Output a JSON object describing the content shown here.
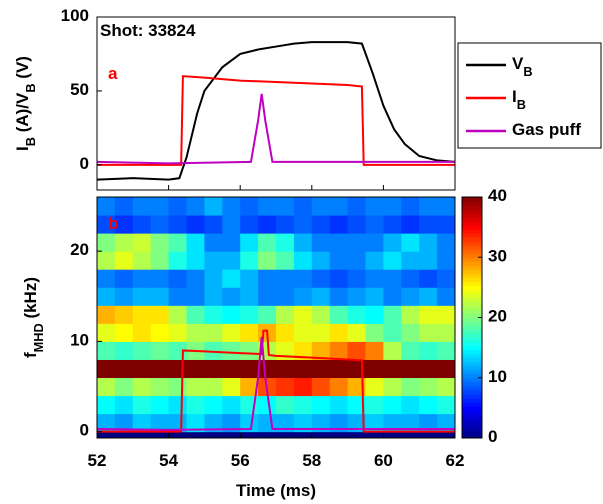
{
  "chart_data": [
    {
      "type": "line",
      "annotations": [
        "Shot:  33824",
        "a"
      ],
      "ylabel": "I_B (A)/V_B (V)",
      "xlim": [
        52,
        62
      ],
      "xticks": [
        52,
        54,
        56,
        58,
        60,
        62
      ],
      "ylim": [
        -17,
        100
      ],
      "yticks": [
        0,
        50,
        100
      ],
      "series": [
        {
          "name": "V_B",
          "color": "#000000",
          "x": [
            52,
            53,
            54,
            54.3,
            54.5,
            54.8,
            55,
            55.5,
            56,
            56.5,
            57,
            57.5,
            58,
            58.5,
            59,
            59.4,
            59.7,
            60,
            60.3,
            60.6,
            61,
            61.5,
            62
          ],
          "values": [
            -10,
            -9,
            -10,
            -9,
            5,
            35,
            50,
            66,
            75,
            78,
            80,
            82,
            83,
            83,
            83,
            82,
            62,
            40,
            24,
            14,
            6,
            3,
            2
          ]
        },
        {
          "name": "I_B",
          "color": "#ff0000",
          "x": [
            52,
            54.35,
            54.4,
            55,
            56,
            57,
            58,
            59,
            59.4,
            59.45,
            62
          ],
          "values": [
            0,
            0,
            60,
            59,
            57,
            56,
            55,
            54,
            53,
            0,
            0
          ]
        },
        {
          "name": "Gas puff",
          "color": "#c000c0",
          "x": [
            52,
            54,
            56.3,
            56.5,
            56.6,
            56.7,
            56.9,
            58,
            62
          ],
          "values": [
            2,
            1,
            2,
            30,
            48,
            30,
            2,
            2,
            2
          ]
        }
      ],
      "legend": "outside-right"
    },
    {
      "type": "heatmap",
      "annotations": [
        "b"
      ],
      "xlabel": "Time (ms)",
      "ylabel": "f_MHD (kHz)",
      "xlim": [
        52,
        62
      ],
      "xticks": [
        52,
        54,
        56,
        58,
        60,
        62
      ],
      "ylim": [
        -0.7,
        26
      ],
      "yticks": [
        0,
        10,
        20
      ],
      "xbins": [
        52,
        52.5,
        53,
        53.5,
        54,
        54.5,
        55,
        55.5,
        56,
        56.5,
        57,
        57.5,
        58,
        58.5,
        59,
        59.5,
        60,
        60.5,
        61,
        61.5,
        62
      ],
      "ybins": [
        0,
        2,
        4,
        6,
        8,
        10,
        12,
        14,
        16,
        18,
        20,
        22,
        24,
        26
      ],
      "z": [
        [
          12,
          11,
          13,
          12,
          12,
          14,
          12,
          11,
          13,
          12,
          12,
          13,
          12,
          11,
          12,
          13,
          12,
          12,
          11,
          12
        ],
        [
          15,
          14,
          16,
          15,
          14,
          16,
          15,
          14,
          16,
          15,
          17,
          16,
          15,
          14,
          15,
          16,
          15,
          14,
          15,
          16
        ],
        [
          22,
          20,
          22,
          21,
          20,
          22,
          22,
          24,
          28,
          32,
          33,
          34,
          32,
          30,
          28,
          24,
          22,
          20,
          21,
          22
        ],
        [
          40,
          40,
          40,
          40,
          40,
          40,
          40,
          40,
          40,
          40,
          40,
          40,
          40,
          40,
          40,
          40,
          40,
          40,
          40,
          40
        ],
        [
          18,
          17,
          18,
          19,
          18,
          20,
          18,
          19,
          20,
          22,
          24,
          26,
          28,
          30,
          32,
          30,
          22,
          18,
          17,
          18
        ],
        [
          24,
          25,
          26,
          25,
          24,
          22,
          22,
          24,
          26,
          28,
          26,
          24,
          24,
          26,
          24,
          20,
          18,
          20,
          22,
          22
        ],
        [
          28,
          27,
          26,
          26,
          22,
          18,
          16,
          15,
          16,
          18,
          22,
          24,
          22,
          18,
          16,
          15,
          18,
          22,
          24,
          24
        ],
        [
          12,
          11,
          12,
          12,
          10,
          10,
          12,
          11,
          12,
          10,
          10,
          11,
          12,
          10,
          11,
          12,
          10,
          11,
          12,
          10
        ],
        [
          10,
          9,
          10,
          10,
          9,
          10,
          12,
          14,
          12,
          10,
          10,
          10,
          9,
          8,
          9,
          10,
          10,
          9,
          8,
          9
        ],
        [
          22,
          24,
          22,
          20,
          16,
          14,
          12,
          12,
          16,
          20,
          18,
          14,
          12,
          10,
          10,
          12,
          14,
          12,
          12,
          10
        ],
        [
          20,
          22,
          23,
          20,
          18,
          14,
          10,
          10,
          14,
          18,
          16,
          12,
          10,
          10,
          10,
          10,
          12,
          14,
          12,
          10
        ],
        [
          8,
          7,
          8,
          9,
          8,
          7,
          8,
          10,
          8,
          7,
          8,
          9,
          8,
          7,
          8,
          9,
          8,
          7,
          8,
          8
        ],
        [
          10,
          9,
          10,
          10,
          9,
          10,
          12,
          10,
          9,
          10,
          10,
          9,
          10,
          10,
          9,
          10,
          10,
          9,
          10,
          10
        ]
      ],
      "colormap": "jet",
      "clim": [
        0,
        40
      ],
      "cticks": [
        0,
        10,
        20,
        30,
        40
      ],
      "series": [
        {
          "color": "#ff0000",
          "x": [
            52,
            54.35,
            54.4,
            55,
            56,
            56.6,
            56.65,
            56.75,
            56.8,
            57,
            58,
            59,
            59.4,
            59.45,
            62
          ],
          "values": [
            0,
            0,
            9,
            8.9,
            8.7,
            8.6,
            11.2,
            11.2,
            8.5,
            8.4,
            8.2,
            8,
            7.9,
            0,
            0
          ]
        },
        {
          "color": "#c000c0",
          "x": [
            52,
            54,
            56.3,
            56.5,
            56.6,
            56.7,
            56.9,
            58,
            62
          ],
          "values": [
            0.3,
            0.2,
            0.3,
            6,
            10.5,
            6,
            0.3,
            0.3,
            0.3
          ]
        }
      ]
    }
  ]
}
